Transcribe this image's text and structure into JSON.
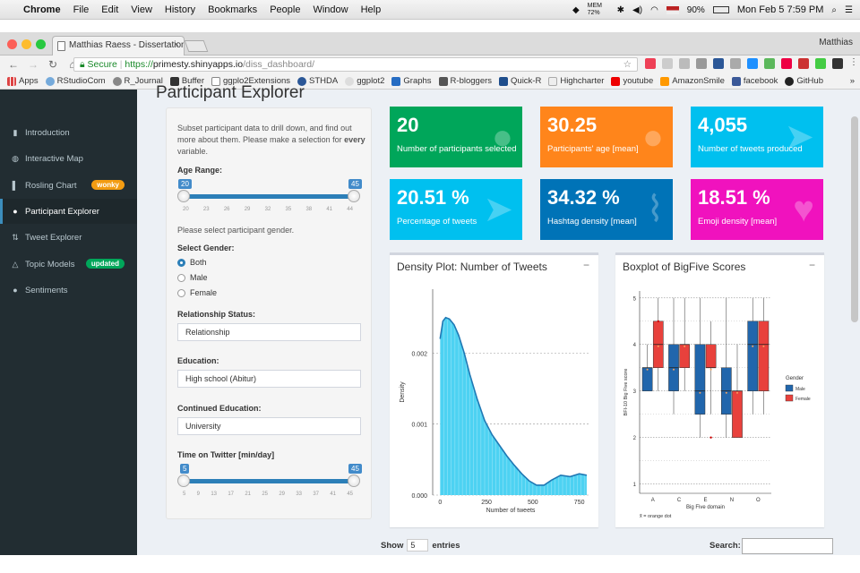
{
  "macos_menubar": {
    "app": "Chrome",
    "menus": [
      "File",
      "Edit",
      "View",
      "History",
      "Bookmarks",
      "People",
      "Window",
      "Help"
    ],
    "mem": "MEM 72%",
    "battery": "90%",
    "datetime": "Mon Feb 5  7:59 PM"
  },
  "browser": {
    "tab_title": "Matthias Raess - Dissertation",
    "profile": "Matthias",
    "secure_label": "Secure",
    "url_scheme": "https://",
    "url_host": "primesty.shinyapps.io",
    "url_path": "/diss_dashboard/",
    "bookmarks": [
      "Apps",
      "RStudioCom",
      "R_Journal",
      "Buffer",
      "ggplo2Extensions",
      "STHDA",
      "ggplot2",
      "Graphs",
      "R-bloggers",
      "Quick-R",
      "Highcharter",
      "youtube",
      "AmazonSmile",
      "facebook",
      "GitHub"
    ]
  },
  "sidebar": {
    "items": [
      {
        "label": "Introduction",
        "icon": "book-icon"
      },
      {
        "label": "Interactive Map",
        "icon": "globe-icon"
      },
      {
        "label": "Rosling Chart",
        "icon": "bar-chart-icon",
        "badge": "wonky"
      },
      {
        "label": "Participant Explorer",
        "icon": "user-icon"
      },
      {
        "label": "Tweet Explorer",
        "icon": "sort-icon"
      },
      {
        "label": "Topic Models",
        "icon": "warning-icon",
        "badge": "updated"
      },
      {
        "label": "Sentiments",
        "icon": "users-icon"
      }
    ],
    "active": "Participant Explorer",
    "badge_colors": {
      "wonky": "#f39c12",
      "updated": "#00a65a"
    }
  },
  "page": {
    "title": "Participant Explorer"
  },
  "filters": {
    "intro_1": "Subset participant data to drill down, and find out",
    "intro_2a": "more about them. Please make a selection for ",
    "intro_2b": "every",
    "intro_3": "variable.",
    "age_label": "Age Range:",
    "age_min": 20,
    "age_max": 45,
    "age_ticks": [
      "20",
      "23",
      "26",
      "29",
      "32",
      "35",
      "38",
      "41",
      "44"
    ],
    "gender_prompt": "Please select participant gender.",
    "gender_label": "Select Gender:",
    "gender_options": [
      "Both",
      "Male",
      "Female"
    ],
    "gender_selected": "Both",
    "relationship_label": "Relationship Status:",
    "relationship_value": "Relationship",
    "education_label": "Education:",
    "education_value": "High school (Abitur)",
    "cont_education_label": "Continued Education:",
    "cont_education_value": "University",
    "twitter_label": "Time on Twitter [min/day]",
    "twitter_min": 5,
    "twitter_max": 45,
    "twitter_ticks": [
      "5",
      "9",
      "13",
      "17",
      "21",
      "25",
      "29",
      "33",
      "37",
      "41",
      "45"
    ]
  },
  "value_boxes": [
    {
      "value": "20",
      "label": "Number of participants selected",
      "color": "#00a65a",
      "icon": "user-icon"
    },
    {
      "value": "30.25",
      "label": "Participants' age [mean]",
      "color": "#ff851b",
      "icon": "user-icon"
    },
    {
      "value": "4,055",
      "label": "Number of tweets produced",
      "color": "#00c0ef",
      "icon": "paper-plane-icon"
    },
    {
      "value": "20.51 %",
      "label": "Percentage of tweets",
      "color": "#00c0ef",
      "icon": "paper-plane-icon"
    },
    {
      "value": "34.32 %",
      "label": "Hashtag density [mean]",
      "color": "#0073b7",
      "icon": "paperclip-icon"
    },
    {
      "value": "18.51 %",
      "label": "Emoji density [mean]",
      "color": "#f012be",
      "icon": "heart-icon"
    }
  ],
  "density_panel": {
    "title": "Density Plot: Number of Tweets",
    "minimize": "−"
  },
  "boxplot_panel": {
    "title": "Boxplot of BigFive Scores",
    "minimize": "−"
  },
  "chart_data": [
    {
      "type": "area",
      "xlabel": "Number of tweets",
      "ylabel": "Density",
      "xlim": [
        -40,
        800
      ],
      "ylim": [
        0,
        0.0029
      ],
      "x_ticks": [
        0,
        250,
        500,
        750
      ],
      "y_ticks": [
        0.0,
        0.001,
        0.002
      ],
      "y_tick_labels": [
        "0.000",
        "0.001",
        "0.002"
      ],
      "x": [
        0,
        15,
        30,
        50,
        75,
        100,
        130,
        160,
        200,
        240,
        280,
        320,
        360,
        400,
        440,
        480,
        520,
        560,
        600,
        650,
        700,
        750,
        790
      ],
      "y": [
        0.0022,
        0.00245,
        0.0025,
        0.00248,
        0.0024,
        0.00225,
        0.002,
        0.0017,
        0.00135,
        0.00105,
        0.00085,
        0.0007,
        0.00055,
        0.00042,
        0.0003,
        0.0002,
        0.00014,
        0.00014,
        0.00021,
        0.00028,
        0.00026,
        0.0003,
        0.00028
      ],
      "fill": "#4dd2f2",
      "line": "#1f78b4"
    },
    {
      "type": "box",
      "xlabel": "Big Five domain",
      "ylabel": "BFI-10 Big Five score",
      "ylim": [
        0.8,
        5.15
      ],
      "y_ticks": [
        1,
        2,
        3,
        4,
        5
      ],
      "categories": [
        "A",
        "C",
        "E",
        "N",
        "O"
      ],
      "legend_title": "Gender",
      "legend_position": "right",
      "note": "x̃ = orange dot",
      "series": [
        {
          "name": "Male",
          "color": "#2166ac",
          "boxes": [
            {
              "min": 3,
              "q1": 3.0,
              "median": 3.5,
              "q3": 3.5,
              "max": 4,
              "outliers": []
            },
            {
              "min": 2.5,
              "q1": 3.0,
              "median": 3.5,
              "q3": 4.0,
              "max": 5,
              "outliers": []
            },
            {
              "min": 2,
              "q1": 2.5,
              "median": 3.0,
              "q3": 4.0,
              "max": 5,
              "outliers": []
            },
            {
              "min": 2,
              "q1": 2.5,
              "median": 3.0,
              "q3": 3.5,
              "max": 5,
              "outliers": []
            },
            {
              "min": 2.5,
              "q1": 3.0,
              "median": 4.0,
              "q3": 4.5,
              "max": 5,
              "outliers": []
            }
          ]
        },
        {
          "name": "Female",
          "color": "#e8413c",
          "boxes": [
            {
              "min": 3,
              "q1": 3.5,
              "median": 4.0,
              "q3": 4.5,
              "max": 5,
              "outliers": [
                4.5
              ]
            },
            {
              "min": 3,
              "q1": 3.5,
              "median": 4.0,
              "q3": 4.0,
              "max": 5,
              "outliers": []
            },
            {
              "min": 2.5,
              "q1": 3.5,
              "median": 3.5,
              "q3": 4.0,
              "max": 4.5,
              "outliers": [
                2
              ]
            },
            {
              "min": 2,
              "q1": 2.0,
              "median": 3.0,
              "q3": 3.0,
              "max": 4,
              "outliers": []
            },
            {
              "min": 2.5,
              "q1": 3.0,
              "median": 4.0,
              "q3": 4.5,
              "max": 5,
              "outliers": []
            }
          ]
        }
      ]
    }
  ],
  "table_controls": {
    "show_label": "Show",
    "show_value": "5",
    "entries_label": "entries",
    "search_label": "Search:"
  }
}
